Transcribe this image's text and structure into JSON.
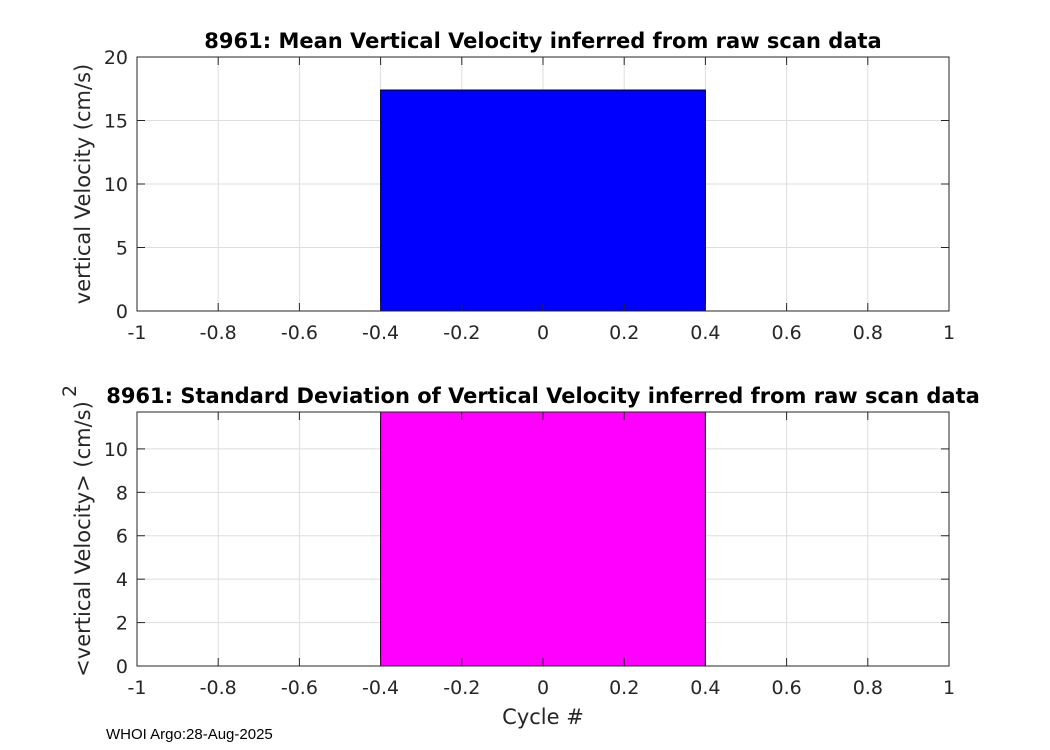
{
  "footer": "WHOI Argo:28-Aug-2025",
  "chart_data": [
    {
      "type": "bar",
      "title": "8961: Mean Vertical Velocity inferred from raw scan data",
      "xlabel": "",
      "ylabel": "vertical Velocity (cm/s)",
      "xlim": [
        -1,
        1
      ],
      "ylim": [
        0,
        20
      ],
      "xticks": [
        "-1",
        "-0.8",
        "-0.6",
        "-0.4",
        "-0.2",
        "0",
        "0.2",
        "0.4",
        "0.6",
        "0.8",
        "1"
      ],
      "xtick_values": [
        -1,
        -0.8,
        -0.6,
        -0.4,
        -0.2,
        0,
        0.2,
        0.4,
        0.6,
        0.8,
        1
      ],
      "yticks": [
        "0",
        "5",
        "10",
        "15",
        "20"
      ],
      "ytick_values": [
        0,
        5,
        10,
        15,
        20
      ],
      "grid": true,
      "bars": [
        {
          "x": 0,
          "width": 0.8,
          "value": 17.4
        }
      ],
      "color": "#0000ff"
    },
    {
      "type": "bar",
      "title": "8961: Standard Deviation of Vertical Velocity inferred from raw scan data",
      "xlabel": "Cycle #",
      "ylabel": "<vertical Velocity> (cm/s)",
      "xlim": [
        -1,
        1
      ],
      "ylim": [
        0,
        11.7
      ],
      "xticks": [
        "-1",
        "-0.8",
        "-0.6",
        "-0.4",
        "-0.2",
        "0",
        "0.2",
        "0.4",
        "0.6",
        "0.8",
        "1"
      ],
      "xtick_values": [
        -1,
        -0.8,
        -0.6,
        -0.4,
        -0.2,
        0,
        0.2,
        0.4,
        0.6,
        0.8,
        1
      ],
      "yticks": [
        "0",
        "2",
        "4",
        "6",
        "8",
        "10"
      ],
      "ytick_values": [
        0,
        2,
        4,
        6,
        8,
        10
      ],
      "grid": true,
      "bars": [
        {
          "x": 0,
          "width": 0.8,
          "value": 11.7
        }
      ],
      "color": "#ff00ff",
      "ylabel_exponent": "2"
    }
  ]
}
